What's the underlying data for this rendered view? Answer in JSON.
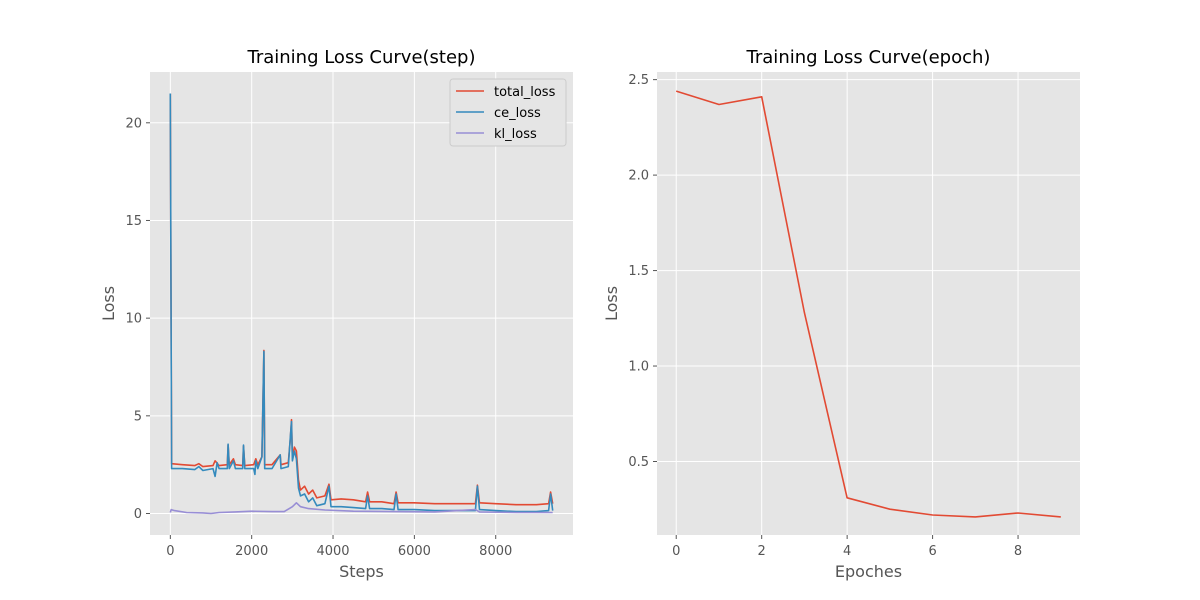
{
  "chart_data": [
    {
      "type": "line",
      "title": "Training Loss Curve(step)",
      "xlabel": "Steps",
      "ylabel": "Loss",
      "xlim": [
        -500,
        9900
      ],
      "ylim": [
        -1.1,
        22.6
      ],
      "xticks": [
        0,
        2000,
        4000,
        6000,
        8000
      ],
      "xtick_labels": [
        "0",
        "2000",
        "4000",
        "6000",
        "8000"
      ],
      "yticks": [
        0,
        5,
        10,
        15,
        20
      ],
      "ytick_labels": [
        "0",
        "5",
        "10",
        "15",
        "20"
      ],
      "grid": true,
      "legend_position": "top-right",
      "series": [
        {
          "name": "total_loss",
          "color": "#E24A33",
          "points": [
            [
              0,
              21.5
            ],
            [
              30,
              2.55
            ],
            [
              300,
              2.5
            ],
            [
              600,
              2.45
            ],
            [
              700,
              2.55
            ],
            [
              800,
              2.4
            ],
            [
              1050,
              2.45
            ],
            [
              1100,
              2.7
            ],
            [
              1200,
              2.45
            ],
            [
              1400,
              2.5
            ],
            [
              1420,
              3.5
            ],
            [
              1450,
              2.5
            ],
            [
              1550,
              2.8
            ],
            [
              1600,
              2.5
            ],
            [
              1780,
              2.45
            ],
            [
              1800,
              3.45
            ],
            [
              1830,
              2.45
            ],
            [
              2050,
              2.5
            ],
            [
              2100,
              2.8
            ],
            [
              2150,
              2.5
            ],
            [
              2250,
              2.9
            ],
            [
              2300,
              8.35
            ],
            [
              2320,
              2.5
            ],
            [
              2500,
              2.5
            ],
            [
              2700,
              3.0
            ],
            [
              2720,
              2.5
            ],
            [
              2900,
              2.6
            ],
            [
              2950,
              3.8
            ],
            [
              2980,
              4.8
            ],
            [
              3000,
              2.9
            ],
            [
              3050,
              3.4
            ],
            [
              3100,
              3.2
            ],
            [
              3150,
              1.7
            ],
            [
              3200,
              1.2
            ],
            [
              3300,
              1.4
            ],
            [
              3400,
              1.0
            ],
            [
              3500,
              1.2
            ],
            [
              3600,
              0.8
            ],
            [
              3800,
              0.9
            ],
            [
              3900,
              1.5
            ],
            [
              3950,
              0.7
            ],
            [
              4200,
              0.75
            ],
            [
              4500,
              0.7
            ],
            [
              4800,
              0.6
            ],
            [
              4850,
              1.1
            ],
            [
              4900,
              0.6
            ],
            [
              5200,
              0.6
            ],
            [
              5500,
              0.5
            ],
            [
              5550,
              1.1
            ],
            [
              5600,
              0.55
            ],
            [
              6000,
              0.55
            ],
            [
              6500,
              0.5
            ],
            [
              7000,
              0.5
            ],
            [
              7500,
              0.5
            ],
            [
              7550,
              1.45
            ],
            [
              7600,
              0.55
            ],
            [
              8000,
              0.5
            ],
            [
              8500,
              0.45
            ],
            [
              9000,
              0.45
            ],
            [
              9300,
              0.5
            ],
            [
              9350,
              1.1
            ],
            [
              9400,
              0.5
            ]
          ]
        },
        {
          "name": "ce_loss",
          "color": "#348ABD",
          "points": [
            [
              0,
              21.5
            ],
            [
              30,
              2.3
            ],
            [
              300,
              2.3
            ],
            [
              600,
              2.25
            ],
            [
              700,
              2.4
            ],
            [
              800,
              2.2
            ],
            [
              1050,
              2.3
            ],
            [
              1100,
              1.9
            ],
            [
              1150,
              2.6
            ],
            [
              1200,
              2.3
            ],
            [
              1400,
              2.3
            ],
            [
              1420,
              3.55
            ],
            [
              1450,
              2.3
            ],
            [
              1550,
              2.7
            ],
            [
              1600,
              2.3
            ],
            [
              1780,
              2.3
            ],
            [
              1800,
              3.5
            ],
            [
              1830,
              2.3
            ],
            [
              2050,
              2.3
            ],
            [
              2080,
              2.0
            ],
            [
              2100,
              2.7
            ],
            [
              2150,
              2.3
            ],
            [
              2250,
              2.9
            ],
            [
              2300,
              8.3
            ],
            [
              2320,
              2.3
            ],
            [
              2500,
              2.3
            ],
            [
              2700,
              3.0
            ],
            [
              2720,
              2.3
            ],
            [
              2900,
              2.4
            ],
            [
              2950,
              3.9
            ],
            [
              2980,
              4.7
            ],
            [
              3000,
              2.7
            ],
            [
              3050,
              3.2
            ],
            [
              3100,
              2.8
            ],
            [
              3150,
              1.3
            ],
            [
              3200,
              0.9
            ],
            [
              3300,
              1.0
            ],
            [
              3400,
              0.6
            ],
            [
              3500,
              0.8
            ],
            [
              3600,
              0.4
            ],
            [
              3800,
              0.5
            ],
            [
              3900,
              1.4
            ],
            [
              3950,
              0.35
            ],
            [
              4200,
              0.35
            ],
            [
              4500,
              0.3
            ],
            [
              4800,
              0.25
            ],
            [
              4850,
              0.9
            ],
            [
              4900,
              0.25
            ],
            [
              5200,
              0.25
            ],
            [
              5500,
              0.2
            ],
            [
              5550,
              1.0
            ],
            [
              5600,
              0.2
            ],
            [
              6000,
              0.2
            ],
            [
              6500,
              0.15
            ],
            [
              7000,
              0.15
            ],
            [
              7500,
              0.15
            ],
            [
              7550,
              1.4
            ],
            [
              7600,
              0.2
            ],
            [
              8000,
              0.15
            ],
            [
              8500,
              0.1
            ],
            [
              9000,
              0.1
            ],
            [
              9300,
              0.15
            ],
            [
              9350,
              1.0
            ],
            [
              9400,
              0.15
            ]
          ]
        },
        {
          "name": "kl_loss",
          "color": "#988ED5",
          "points": [
            [
              0,
              0.05
            ],
            [
              20,
              0.2
            ],
            [
              100,
              0.15
            ],
            [
              400,
              0.05
            ],
            [
              800,
              0.03
            ],
            [
              1000,
              0.0
            ],
            [
              1200,
              0.05
            ],
            [
              1600,
              0.08
            ],
            [
              2000,
              0.12
            ],
            [
              2500,
              0.1
            ],
            [
              2800,
              0.1
            ],
            [
              3000,
              0.35
            ],
            [
              3100,
              0.55
            ],
            [
              3200,
              0.35
            ],
            [
              3400,
              0.25
            ],
            [
              3800,
              0.18
            ],
            [
              4500,
              0.12
            ],
            [
              5500,
              0.1
            ],
            [
              6500,
              0.08
            ],
            [
              7500,
              0.2
            ],
            [
              7600,
              0.08
            ],
            [
              8500,
              0.05
            ],
            [
              9400,
              0.05
            ]
          ]
        }
      ]
    },
    {
      "type": "line",
      "title": "Training Loss Curve(epoch)",
      "xlabel": "Epoches",
      "ylabel": "Loss",
      "xlim": [
        -0.45,
        9.45
      ],
      "ylim": [
        0.115,
        2.54
      ],
      "xticks": [
        0,
        2,
        4,
        6,
        8
      ],
      "xtick_labels": [
        "0",
        "2",
        "4",
        "6",
        "8"
      ],
      "yticks": [
        0.5,
        1.0,
        1.5,
        2.0,
        2.5
      ],
      "ytick_labels": [
        "0.5",
        "1.0",
        "1.5",
        "2.0",
        "2.5"
      ],
      "grid": true,
      "series": [
        {
          "color": "#E24A33",
          "points": [
            [
              0,
              2.44
            ],
            [
              1,
              2.37
            ],
            [
              2,
              2.41
            ],
            [
              3,
              1.28
            ],
            [
              4,
              0.31
            ],
            [
              5,
              0.25
            ],
            [
              6,
              0.22
            ],
            [
              7,
              0.21
            ],
            [
              8,
              0.23
            ],
            [
              9,
              0.21
            ]
          ]
        }
      ]
    }
  ]
}
